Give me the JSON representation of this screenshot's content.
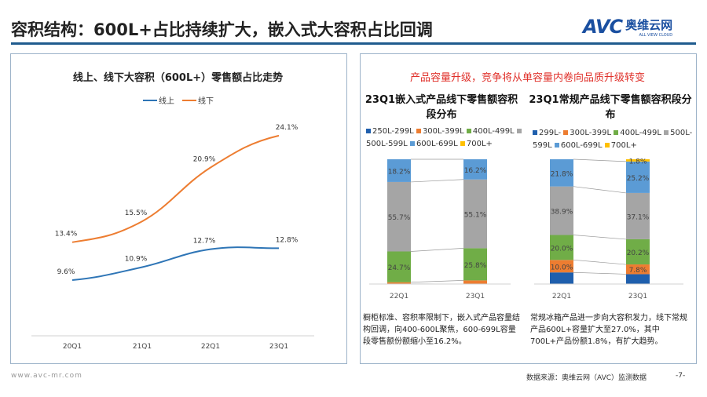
{
  "title": "容积结构：600L+占比持续扩大，嵌入式大容积占比回调",
  "logo": {
    "brand": "AVC",
    "cn": "奥维云网",
    "en": "ALL VIEW CLOUD"
  },
  "left_panel": {
    "title": "线上、线下大容积（600L+）零售额占比走势"
  },
  "right_panel": {
    "headline": "产品容量升级，竞争将从单容量内卷向品质升级转变",
    "note_left": "橱柜标准、容积率限制下，嵌入式产品容量结构回调，向400-600L聚焦，600-699L容量段零售额份额缩小至16.2%。",
    "note_right": "常规冰箱产品进一步向大容积发力，线下常规产品600L+容量扩大至27.0%，其中700L+产品份额1.8%，有扩大趋势。"
  },
  "footer": {
    "site": "www.avc-mr.com",
    "source": "数据来源：奥维云网（AVC）监测数据",
    "page": "-7-"
  },
  "chart_data": [
    {
      "type": "line",
      "title": "线上、线下大容积（600L+）零售额占比走势",
      "categories": [
        "20Q1",
        "21Q1",
        "22Q1",
        "23Q1"
      ],
      "legend": "top",
      "series": [
        {
          "name": "线上",
          "color": "#2e75b6",
          "values": [
            9.6,
            10.9,
            12.7,
            12.8
          ],
          "labels": [
            "9.6%",
            "10.9%",
            "12.7%",
            "12.8%"
          ]
        },
        {
          "name": "线下",
          "color": "#ed7d31",
          "values": [
            13.4,
            15.5,
            20.9,
            24.1
          ],
          "labels": [
            "13.4%",
            "15.5%",
            "20.9%",
            "24.1%"
          ]
        }
      ]
    },
    {
      "type": "bar",
      "stacked": true,
      "title": "23Q1嵌入式产品线下零售额容积段分布",
      "categories": [
        "22Q1",
        "23Q1"
      ],
      "legend": "top",
      "series": [
        {
          "name": "250L-299L",
          "color": "#1f5fad",
          "values": [
            0.2,
            0.0
          ],
          "labels": [
            "",
            ""
          ]
        },
        {
          "name": "300L-399L",
          "color": "#ed7d31",
          "values": [
            1.2,
            2.9
          ],
          "labels": [
            "",
            ""
          ]
        },
        {
          "name": "400L-499L",
          "color": "#70ad47",
          "values": [
            24.7,
            25.8
          ],
          "labels": [
            "24.7%",
            "25.8%"
          ]
        },
        {
          "name": "500L-599L",
          "color": "#a5a5a5",
          "values": [
            55.7,
            55.1
          ],
          "labels": [
            "55.7%",
            "55.1%"
          ]
        },
        {
          "name": "600L-699L",
          "color": "#5b9bd5",
          "values": [
            18.2,
            16.2
          ],
          "labels": [
            "18.2%",
            "16.2%"
          ]
        },
        {
          "name": "700L+",
          "color": "#ffc000",
          "values": [
            0,
            0
          ],
          "labels": [
            "",
            ""
          ]
        }
      ]
    },
    {
      "type": "bar",
      "stacked": true,
      "title": "23Q1常规产品线下零售额容积段分布",
      "categories": [
        "22Q1",
        "23Q1"
      ],
      "legend": "top",
      "series": [
        {
          "name": "299L-",
          "color": "#1f5fad",
          "values": [
            9.3,
            7.9
          ],
          "labels": [
            "",
            ""
          ]
        },
        {
          "name": "300L-399L",
          "color": "#ed7d31",
          "values": [
            10.0,
            7.8
          ],
          "labels": [
            "10.0%",
            "7.8%"
          ]
        },
        {
          "name": "400L-499L",
          "color": "#70ad47",
          "values": [
            20.0,
            20.2
          ],
          "labels": [
            "20.0%",
            "20.2%"
          ]
        },
        {
          "name": "500L-599L",
          "color": "#a5a5a5",
          "values": [
            38.9,
            37.1
          ],
          "labels": [
            "38.9%",
            "37.1%"
          ]
        },
        {
          "name": "600L-699L",
          "color": "#5b9bd5",
          "values": [
            21.8,
            25.2
          ],
          "labels": [
            "21.8%",
            "25.2%"
          ]
        },
        {
          "name": "700L+",
          "color": "#ffc000",
          "values": [
            0,
            1.8
          ],
          "labels": [
            "",
            "1.8%"
          ]
        }
      ]
    }
  ]
}
